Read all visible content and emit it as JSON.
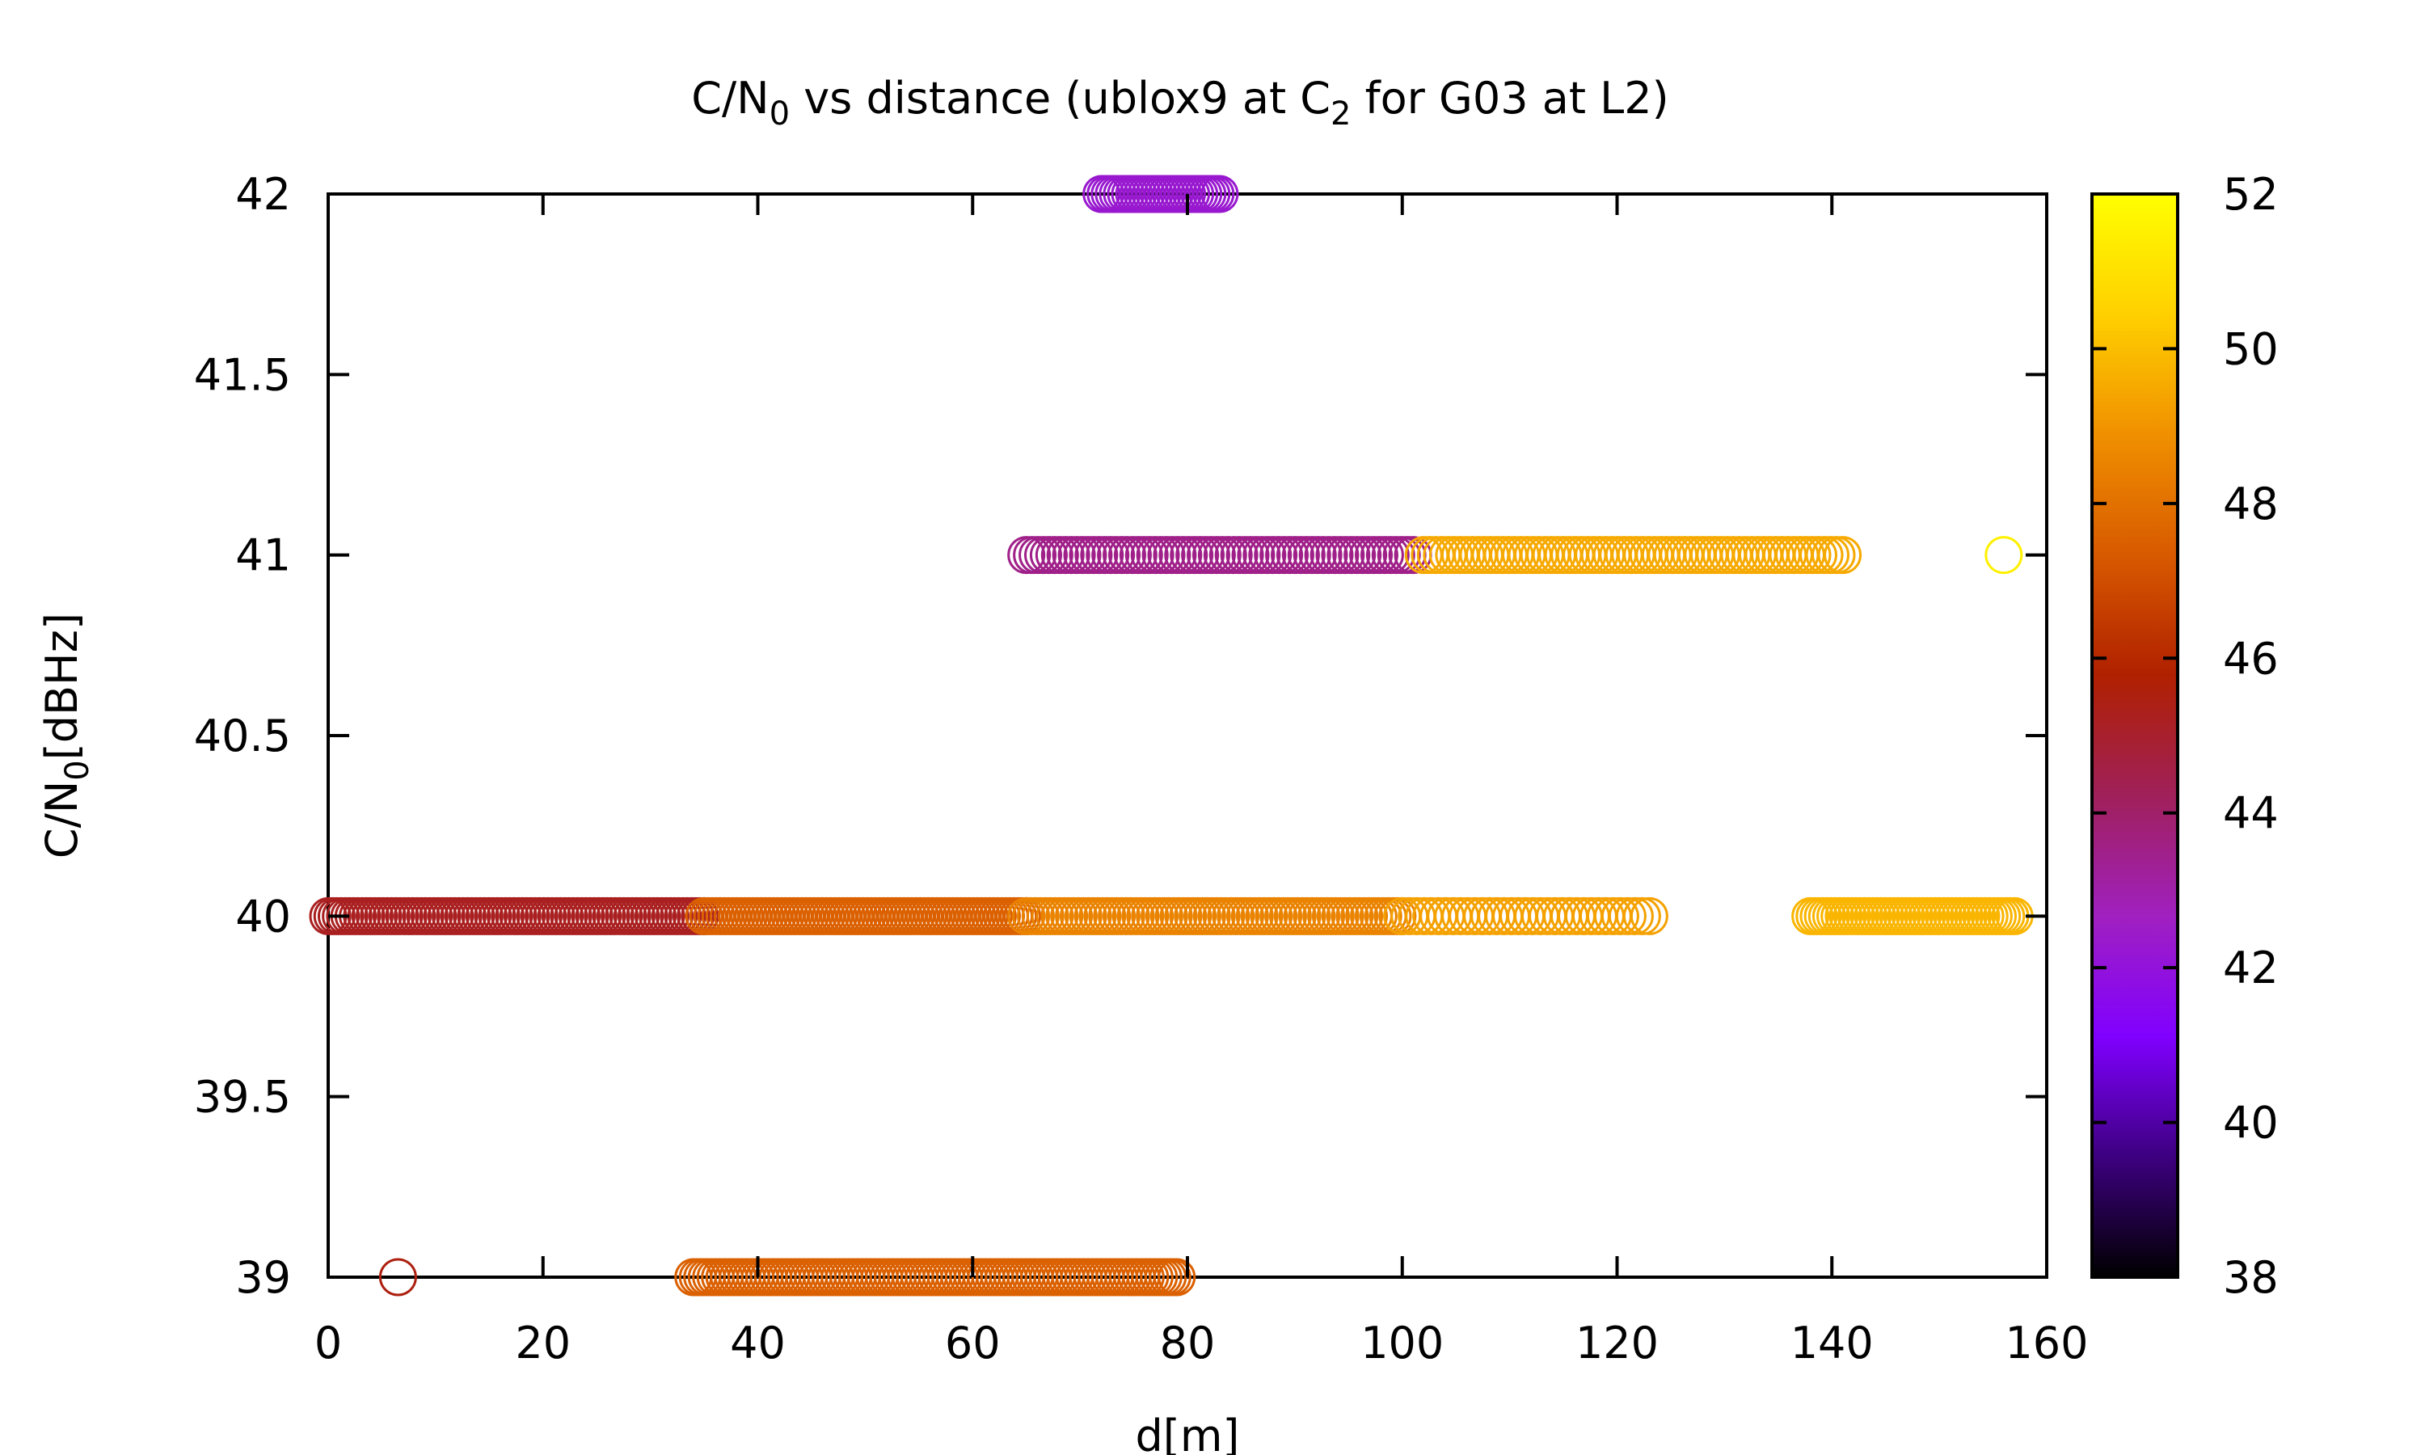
{
  "chart_data": {
    "type": "scatter",
    "title_parts": {
      "a": "C/N",
      "a_sub": "0",
      "b": " vs distance (ublox9 at C",
      "b_sub": "2",
      "c": " for G03 at L2)"
    },
    "xlabel": "d[m]",
    "ylabel_parts": {
      "a": "C/N",
      "a_sub": "0",
      "b": "[dBHz]"
    },
    "xlim": [
      0,
      160
    ],
    "ylim": [
      39,
      42
    ],
    "x_ticks": [
      "0",
      "20",
      "40",
      "60",
      "80",
      "100",
      "120",
      "140",
      "160"
    ],
    "y_ticks": [
      "39",
      "39.5",
      "40",
      "40.5",
      "41",
      "41.5",
      "42"
    ],
    "colorbar": {
      "range": [
        38,
        52
      ],
      "ticks": [
        "38",
        "40",
        "42",
        "44",
        "46",
        "48",
        "50",
        "52"
      ],
      "palette": [
        "#000000",
        "#3d0080",
        "#8000ff",
        "#a020c0",
        "#a0205a",
        "#b02000",
        "#d85a00",
        "#f09000",
        "#ffd000",
        "#ffff00"
      ]
    },
    "series": [
      {
        "y": 42,
        "x_start": 72,
        "x_end": 83,
        "color_value": 42.3,
        "count": 30
      },
      {
        "y": 41,
        "x_start": 65,
        "x_end": 101,
        "color_value": 43.5,
        "count": 70
      },
      {
        "y": 41,
        "x_start": 102,
        "x_end": 141,
        "color_value": 49.5,
        "count": 70
      },
      {
        "y": 41,
        "x": [
          156
        ],
        "color_value": 51.5
      },
      {
        "y": 40,
        "x_start": 0,
        "x_end": 35,
        "color_value": 45.2,
        "count": 90
      },
      {
        "y": 40,
        "x_start": 35,
        "x_end": 65,
        "color_value": 47.5,
        "count": 80
      },
      {
        "y": 40,
        "x_start": 65,
        "x_end": 100,
        "color_value": 48.5,
        "count": 80
      },
      {
        "y": 40,
        "x_start": 100,
        "x_end": 123,
        "color_value": 49.3,
        "count": 35
      },
      {
        "y": 40,
        "x_start": 138,
        "x_end": 157,
        "color_value": 49.8,
        "count": 50
      },
      {
        "y": 39,
        "x": [
          6.5
        ],
        "color_value": 45.5
      },
      {
        "y": 39,
        "x_start": 34,
        "x_end": 79,
        "color_value": 47.5,
        "count": 110
      }
    ]
  }
}
